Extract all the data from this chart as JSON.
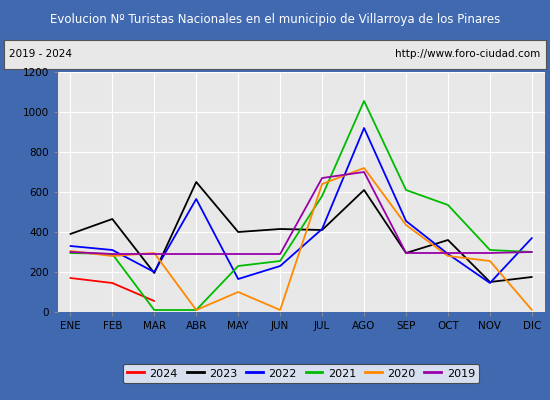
{
  "title": "Evolucion Nº Turistas Nacionales en el municipio de Villarroya de los Pinares",
  "subtitle_left": "2019 - 2024",
  "subtitle_right": "http://www.foro-ciudad.com",
  "months": [
    "ENE",
    "FEB",
    "MAR",
    "ABR",
    "MAY",
    "JUN",
    "JUL",
    "AGO",
    "SEP",
    "OCT",
    "NOV",
    "DIC"
  ],
  "ylim": [
    0,
    1200
  ],
  "yticks": [
    0,
    200,
    400,
    600,
    800,
    1000,
    1200
  ],
  "series": {
    "2024": {
      "color": "#ff0000",
      "values": [
        170,
        145,
        55,
        null,
        null,
        null,
        null,
        null,
        null,
        null,
        null,
        null
      ]
    },
    "2023": {
      "color": "#000000",
      "values": [
        390,
        465,
        195,
        650,
        400,
        415,
        410,
        610,
        295,
        360,
        150,
        175
      ]
    },
    "2022": {
      "color": "#0000ff",
      "values": [
        330,
        310,
        200,
        565,
        165,
        230,
        415,
        920,
        455,
        290,
        145,
        370
      ]
    },
    "2021": {
      "color": "#00bb00",
      "values": [
        295,
        290,
        10,
        10,
        230,
        255,
        580,
        1055,
        610,
        535,
        310,
        300
      ]
    },
    "2020": {
      "color": "#ff8800",
      "values": [
        305,
        280,
        295,
        10,
        100,
        10,
        640,
        720,
        435,
        280,
        255,
        10
      ]
    },
    "2019": {
      "color": "#9900aa",
      "values": [
        300,
        290,
        290,
        290,
        290,
        290,
        670,
        700,
        295,
        295,
        295,
        300
      ]
    }
  },
  "title_bg_color": "#4169b0",
  "title_font_color": "#ffffff",
  "subtitle_bg_color": "#e8e8e8",
  "plot_bg_color": "#e8e8e8",
  "grid_color": "#ffffff",
  "border_color": "#4169b0",
  "legend_years": [
    "2024",
    "2023",
    "2022",
    "2021",
    "2020",
    "2019"
  ]
}
